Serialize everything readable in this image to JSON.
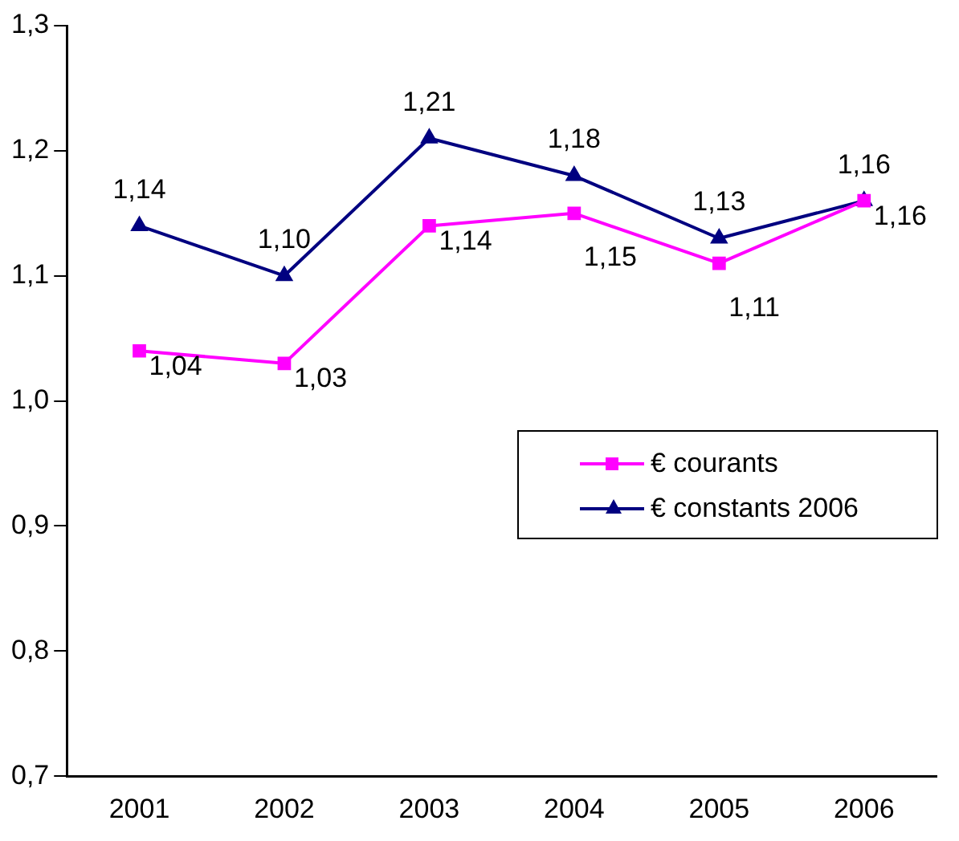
{
  "chart_data": {
    "type": "line",
    "categories": [
      "2001",
      "2002",
      "2003",
      "2004",
      "2005",
      "2006"
    ],
    "series": [
      {
        "name": "€ courants",
        "color": "#ff00ff",
        "marker": "square",
        "values": [
          1.04,
          1.03,
          1.14,
          1.15,
          1.11,
          1.16
        ],
        "value_labels": [
          "1,04",
          "1,03",
          "1,14",
          "1,15",
          "1,11",
          "1,16"
        ]
      },
      {
        "name": "€ constants 2006",
        "color": "#000080",
        "marker": "triangle",
        "values": [
          1.14,
          1.1,
          1.21,
          1.18,
          1.13,
          1.16
        ],
        "value_labels": [
          "1,14",
          "1,10",
          "1,21",
          "1,18",
          "1,13",
          "1,16"
        ]
      }
    ],
    "ylim": [
      0.7,
      1.3
    ],
    "yticks": [
      {
        "value": 0.7,
        "label": "0,7"
      },
      {
        "value": 0.8,
        "label": "0,8"
      },
      {
        "value": 0.9,
        "label": "0,9"
      },
      {
        "value": 1.0,
        "label": "1,0"
      },
      {
        "value": 1.1,
        "label": "1,1"
      },
      {
        "value": 1.2,
        "label": "1,2"
      },
      {
        "value": 1.3,
        "label": "1,3"
      }
    ],
    "grid": false,
    "legend": "right",
    "line_style": "solid"
  }
}
